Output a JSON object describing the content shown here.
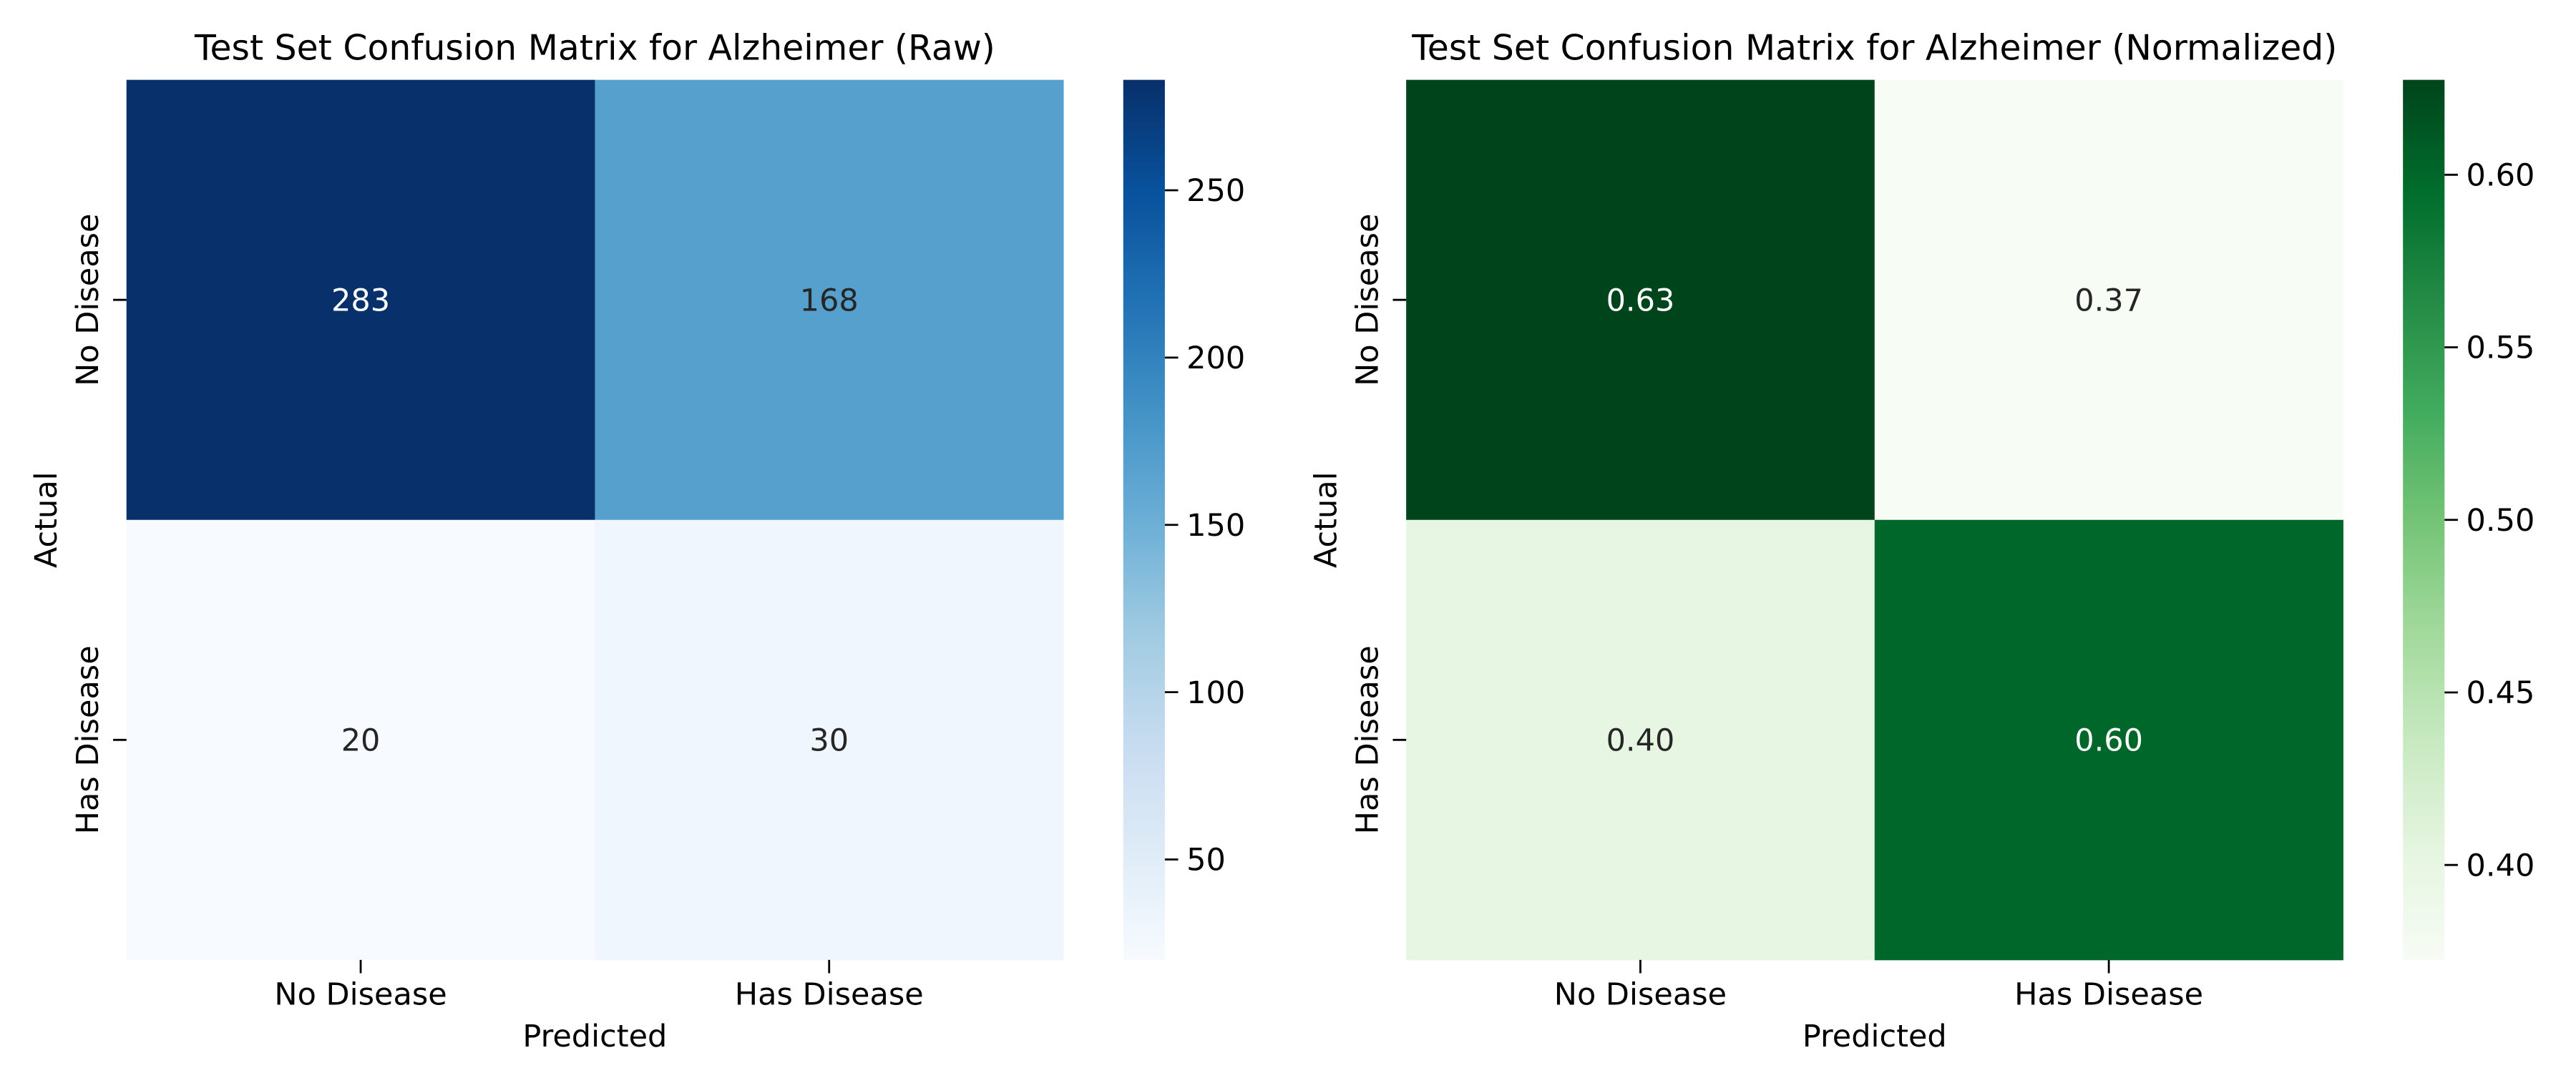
{
  "chart_data": [
    {
      "type": "heatmap",
      "title": "Test Set Confusion Matrix for Alzheimer (Raw)",
      "xlabel": "Predicted",
      "ylabel": "Actual",
      "x_categories": [
        "No Disease",
        "Has Disease"
      ],
      "y_categories": [
        "No Disease",
        "Has Disease"
      ],
      "values": [
        [
          283,
          168
        ],
        [
          20,
          30
        ]
      ],
      "cell_labels": [
        [
          "283",
          "168"
        ],
        [
          "20",
          "30"
        ]
      ],
      "colormap": "Blues",
      "colormap_stops": [
        "#f7fbff",
        "#deebf7",
        "#c6dbef",
        "#9ecae1",
        "#6baed6",
        "#4292c6",
        "#2171b5",
        "#08519c",
        "#08306b"
      ],
      "colorbar_range": [
        20,
        283
      ],
      "colorbar_ticks": [
        50,
        100,
        150,
        200,
        250
      ],
      "colorbar_tick_labels": [
        "50",
        "100",
        "150",
        "200",
        "250"
      ]
    },
    {
      "type": "heatmap",
      "title": "Test Set Confusion Matrix for Alzheimer (Normalized)",
      "xlabel": "Predicted",
      "ylabel": "Actual",
      "x_categories": [
        "No Disease",
        "Has Disease"
      ],
      "y_categories": [
        "No Disease",
        "Has Disease"
      ],
      "values": [
        [
          0.6275,
          0.3725
        ],
        [
          0.4,
          0.6
        ]
      ],
      "cell_labels": [
        [
          "0.63",
          "0.37"
        ],
        [
          "0.40",
          "0.60"
        ]
      ],
      "colormap": "Greens",
      "colormap_stops": [
        "#f7fcf5",
        "#e5f5e0",
        "#c7e9c0",
        "#a1d99b",
        "#74c476",
        "#41ab5d",
        "#238b45",
        "#006d2c",
        "#00441b"
      ],
      "colorbar_range": [
        0.3725,
        0.6275
      ],
      "colorbar_ticks": [
        0.4,
        0.45,
        0.5,
        0.55,
        0.6
      ],
      "colorbar_tick_labels": [
        "0.40",
        "0.45",
        "0.50",
        "0.55",
        "0.60"
      ]
    }
  ]
}
